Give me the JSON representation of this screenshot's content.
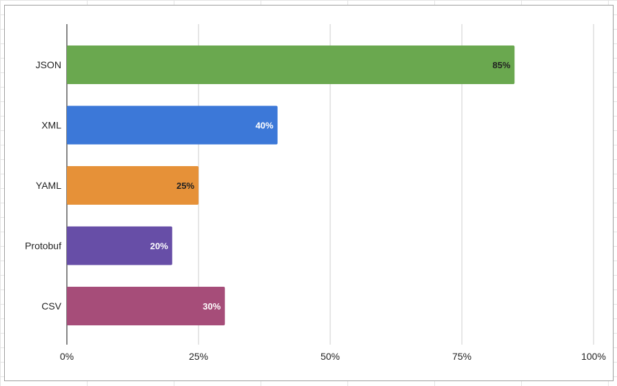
{
  "chart_data": {
    "type": "bar",
    "orientation": "horizontal",
    "categories": [
      "JSON",
      "XML",
      "YAML",
      "Protobuf",
      "CSV"
    ],
    "values": [
      85,
      40,
      25,
      20,
      30
    ],
    "data_labels": [
      "85%",
      "40%",
      "25%",
      "20%",
      "30%"
    ],
    "colors": [
      "#6aa84f",
      "#3c78d8",
      "#e69138",
      "#674ea7",
      "#a64d79"
    ],
    "label_colors": [
      "#222222",
      "#ffffff",
      "#222222",
      "#ffffff",
      "#ffffff"
    ],
    "x_ticks": [
      "0%",
      "25%",
      "50%",
      "75%",
      "100%"
    ],
    "xlim": [
      0,
      100
    ],
    "grid": true,
    "legend": "none"
  }
}
